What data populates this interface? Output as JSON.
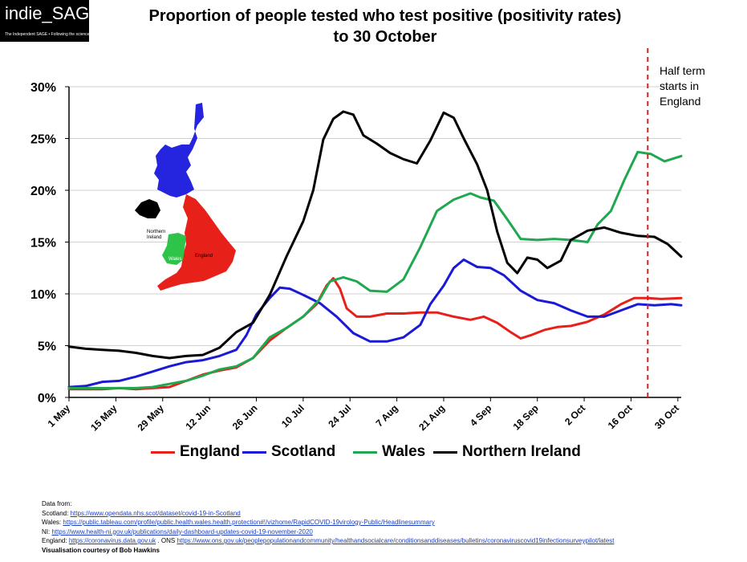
{
  "logo": {
    "text": "indie_SAGE",
    "tagline": "The Independent SAGE • Following the science"
  },
  "title": {
    "line1": "Proportion of people tested who test positive (positivity rates)",
    "line2": "to 30 October"
  },
  "annotation": {
    "line1": "Half term",
    "line2": "starts in",
    "line3": "England"
  },
  "map_labels": {
    "ni_line1": "Northern",
    "ni_line2": "Ireland",
    "wales": "Wales",
    "england": "England"
  },
  "sources": {
    "heading": "Data from:",
    "scotland_label": "Scotland:",
    "scotland_url": "https://www.opendata.nhs.scot/dataset/covid-19-in-Scotland",
    "wales_label": "Wales:",
    "wales_url": "https://public.tableau.com/profile/public.health.wales.health.protection#!/vizhome/RapidCOVID-19virology-Public/Headlinesummary",
    "ni_label": "NI:",
    "ni_url": "https://www.health-ni.gov.uk/publications/daily-dashboard-updates-covid-19-november-2020",
    "england_label": "England:",
    "england_url1": "https://coronavirus.data.gov.uk",
    "england_mid": ". ONS",
    "england_url2": "https://www.ons.gov.uk/peoplepopulationandcommunity/healthandsocialcare/conditionsanddiseases/bulletins/coronaviruscovid19infectionsurveypilot/latest",
    "credit": "Visualisation courtesy of Bob Hawkins"
  },
  "chart_data": {
    "type": "line",
    "title": "Proportion of people tested who test positive (positivity rates) to 30 October",
    "xlabel": "",
    "ylabel": "",
    "x_domain_days": [
      0,
      183
    ],
    "ylim": [
      0,
      30
    ],
    "yticks": [
      0,
      5,
      10,
      15,
      20,
      25,
      30
    ],
    "ytick_labels": [
      "0%",
      "5%",
      "10%",
      "15%",
      "20%",
      "25%",
      "30%"
    ],
    "xticks": [
      0,
      14,
      28,
      42,
      56,
      70,
      84,
      98,
      112,
      126,
      140,
      154,
      168,
      182
    ],
    "xtick_labels": [
      "1 May",
      "15 May",
      "29 May",
      "12 Jun",
      "26 Jun",
      "10 Jul",
      "24 Jul",
      "7 Aug",
      "21 Aug",
      "4 Sep",
      "18 Sep",
      "2 Oct",
      "16 Oct",
      "30 Oct"
    ],
    "grid": true,
    "vline_day": 173,
    "legend_position": "bottom",
    "series": [
      {
        "name": "England",
        "color": "#e8201a",
        "points": [
          [
            0,
            0.8
          ],
          [
            5,
            0.8
          ],
          [
            10,
            0.8
          ],
          [
            15,
            0.9
          ],
          [
            20,
            0.8
          ],
          [
            25,
            0.9
          ],
          [
            30,
            1.0
          ],
          [
            35,
            1.6
          ],
          [
            40,
            2.2
          ],
          [
            45,
            2.6
          ],
          [
            50,
            2.9
          ],
          [
            55,
            3.8
          ],
          [
            60,
            5.5
          ],
          [
            65,
            6.7
          ],
          [
            70,
            7.8
          ],
          [
            74,
            9.0
          ],
          [
            77,
            10.8
          ],
          [
            79,
            11.5
          ],
          [
            81,
            10.5
          ],
          [
            83,
            8.6
          ],
          [
            86,
            7.8
          ],
          [
            90,
            7.8
          ],
          [
            95,
            8.1
          ],
          [
            100,
            8.1
          ],
          [
            105,
            8.2
          ],
          [
            110,
            8.2
          ],
          [
            115,
            7.8
          ],
          [
            120,
            7.5
          ],
          [
            124,
            7.8
          ],
          [
            128,
            7.2
          ],
          [
            132,
            6.3
          ],
          [
            135,
            5.7
          ],
          [
            138,
            6.0
          ],
          [
            142,
            6.5
          ],
          [
            146,
            6.8
          ],
          [
            150,
            6.9
          ],
          [
            155,
            7.3
          ],
          [
            160,
            8.0
          ],
          [
            165,
            9.0
          ],
          [
            169,
            9.6
          ],
          [
            173,
            9.6
          ],
          [
            177,
            9.5
          ],
          [
            183,
            9.6
          ]
        ]
      },
      {
        "name": "Scotland",
        "color": "#1a1ad6",
        "points": [
          [
            0,
            1.0
          ],
          [
            5,
            1.1
          ],
          [
            10,
            1.5
          ],
          [
            15,
            1.6
          ],
          [
            20,
            2.0
          ],
          [
            25,
            2.5
          ],
          [
            30,
            3.0
          ],
          [
            35,
            3.4
          ],
          [
            40,
            3.6
          ],
          [
            45,
            4.0
          ],
          [
            50,
            4.6
          ],
          [
            53,
            6.0
          ],
          [
            56,
            8.0
          ],
          [
            60,
            9.6
          ],
          [
            63,
            10.6
          ],
          [
            66,
            10.5
          ],
          [
            70,
            9.9
          ],
          [
            75,
            9.1
          ],
          [
            80,
            7.8
          ],
          [
            85,
            6.2
          ],
          [
            90,
            5.4
          ],
          [
            95,
            5.4
          ],
          [
            100,
            5.8
          ],
          [
            105,
            7.0
          ],
          [
            108,
            9.0
          ],
          [
            112,
            10.8
          ],
          [
            115,
            12.5
          ],
          [
            118,
            13.3
          ],
          [
            122,
            12.6
          ],
          [
            126,
            12.5
          ],
          [
            130,
            11.8
          ],
          [
            135,
            10.3
          ],
          [
            140,
            9.4
          ],
          [
            145,
            9.1
          ],
          [
            150,
            8.4
          ],
          [
            155,
            7.8
          ],
          [
            160,
            7.8
          ],
          [
            165,
            8.4
          ],
          [
            170,
            9.0
          ],
          [
            175,
            8.9
          ],
          [
            180,
            9.0
          ],
          [
            183,
            8.9
          ]
        ]
      },
      {
        "name": "Wales",
        "color": "#1fa84f",
        "points": [
          [
            0,
            0.9
          ],
          [
            5,
            0.9
          ],
          [
            10,
            0.9
          ],
          [
            15,
            0.9
          ],
          [
            20,
            0.9
          ],
          [
            25,
            1.0
          ],
          [
            30,
            1.3
          ],
          [
            35,
            1.6
          ],
          [
            40,
            2.1
          ],
          [
            45,
            2.7
          ],
          [
            50,
            3.0
          ],
          [
            55,
            3.8
          ],
          [
            60,
            5.8
          ],
          [
            65,
            6.7
          ],
          [
            70,
            7.8
          ],
          [
            75,
            9.5
          ],
          [
            78,
            11.2
          ],
          [
            82,
            11.6
          ],
          [
            86,
            11.2
          ],
          [
            90,
            10.3
          ],
          [
            95,
            10.2
          ],
          [
            100,
            11.4
          ],
          [
            105,
            14.5
          ],
          [
            110,
            18.0
          ],
          [
            115,
            19.1
          ],
          [
            120,
            19.7
          ],
          [
            123,
            19.3
          ],
          [
            127,
            19.0
          ],
          [
            131,
            17.2
          ],
          [
            135,
            15.3
          ],
          [
            140,
            15.2
          ],
          [
            145,
            15.3
          ],
          [
            150,
            15.2
          ],
          [
            155,
            15.0
          ],
          [
            158,
            16.7
          ],
          [
            162,
            18.0
          ],
          [
            166,
            21.0
          ],
          [
            170,
            23.7
          ],
          [
            174,
            23.5
          ],
          [
            178,
            22.8
          ],
          [
            183,
            23.3
          ]
        ]
      },
      {
        "name": "Northern Ireland",
        "color": "#000000",
        "points": [
          [
            0,
            4.9
          ],
          [
            5,
            4.7
          ],
          [
            10,
            4.6
          ],
          [
            15,
            4.5
          ],
          [
            20,
            4.3
          ],
          [
            25,
            4.0
          ],
          [
            30,
            3.8
          ],
          [
            35,
            4.0
          ],
          [
            40,
            4.1
          ],
          [
            45,
            4.8
          ],
          [
            50,
            6.3
          ],
          [
            55,
            7.2
          ],
          [
            60,
            9.9
          ],
          [
            65,
            13.6
          ],
          [
            70,
            17.0
          ],
          [
            73,
            20.0
          ],
          [
            76,
            24.9
          ],
          [
            79,
            26.9
          ],
          [
            82,
            27.6
          ],
          [
            85,
            27.3
          ],
          [
            88,
            25.3
          ],
          [
            92,
            24.5
          ],
          [
            96,
            23.6
          ],
          [
            100,
            23.0
          ],
          [
            104,
            22.6
          ],
          [
            108,
            24.8
          ],
          [
            112,
            27.5
          ],
          [
            115,
            27.0
          ],
          [
            118,
            25.0
          ],
          [
            122,
            22.5
          ],
          [
            125,
            20.0
          ],
          [
            128,
            16.0
          ],
          [
            131,
            13.0
          ],
          [
            134,
            12.0
          ],
          [
            137,
            13.5
          ],
          [
            140,
            13.3
          ],
          [
            143,
            12.5
          ],
          [
            147,
            13.2
          ],
          [
            150,
            15.2
          ],
          [
            155,
            16.1
          ],
          [
            160,
            16.4
          ],
          [
            165,
            15.9
          ],
          [
            170,
            15.6
          ],
          [
            175,
            15.5
          ],
          [
            179,
            14.8
          ],
          [
            183,
            13.6
          ]
        ]
      }
    ]
  }
}
